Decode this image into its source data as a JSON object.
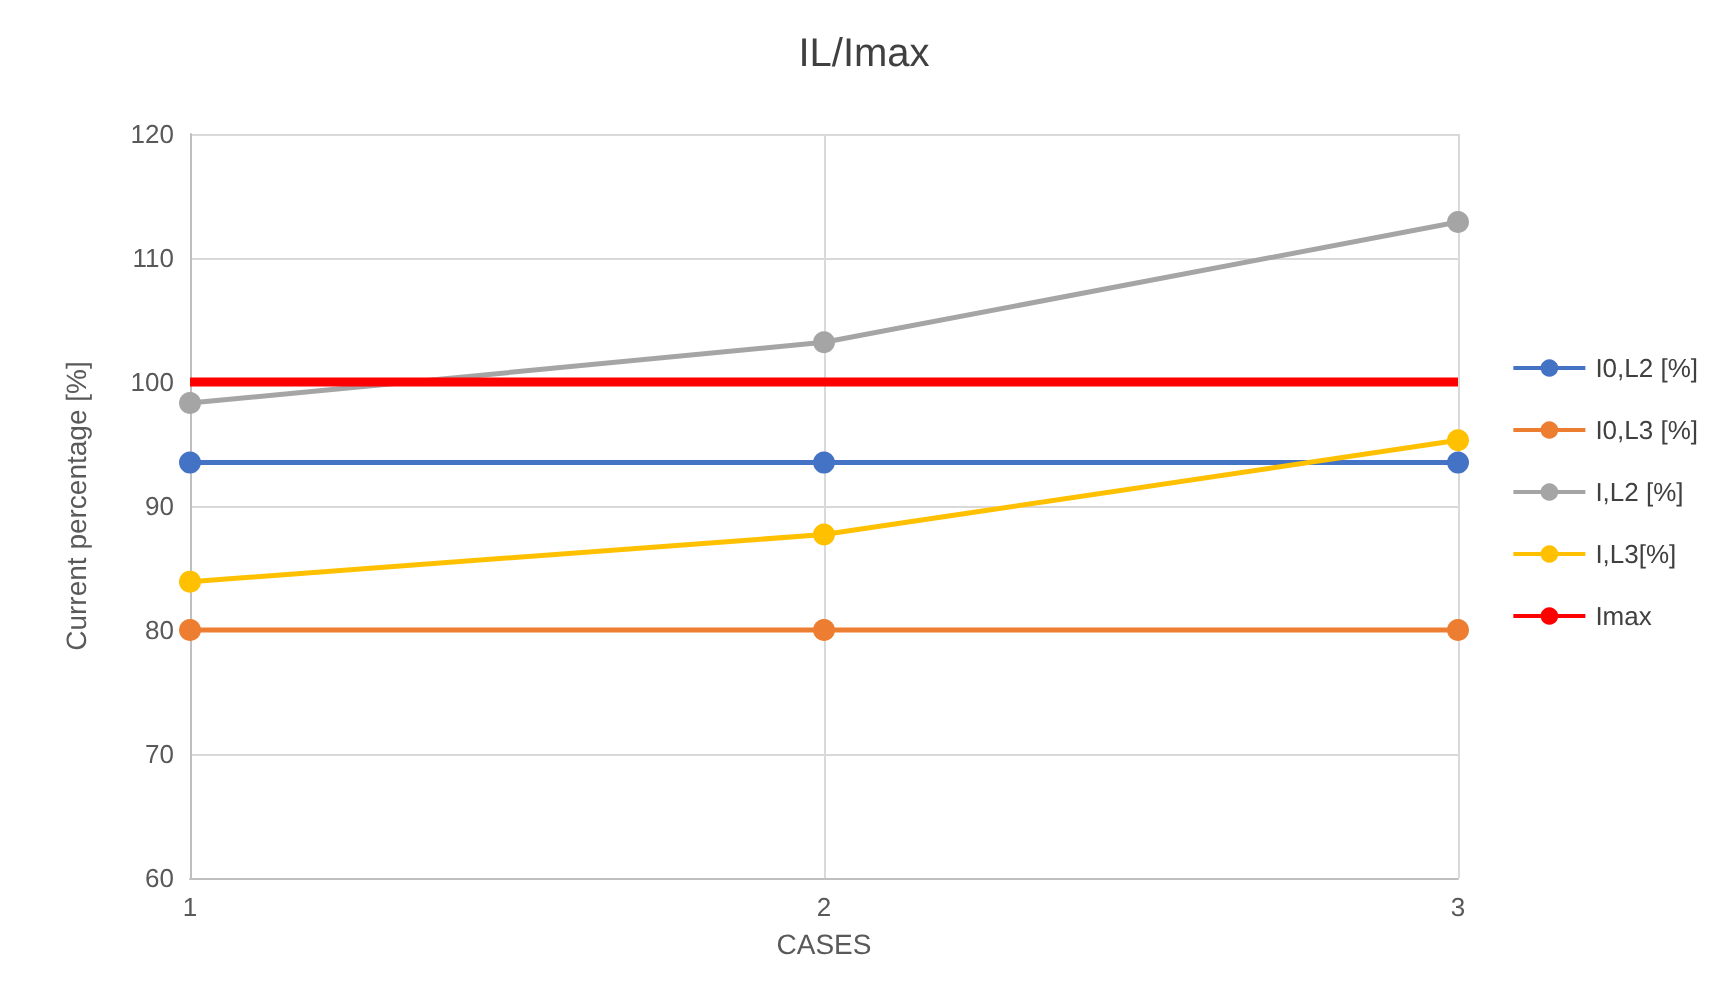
{
  "chart_data": {
    "type": "line",
    "title": "IL/Imax",
    "xlabel": "CASES",
    "ylabel": "Current percentage [%]",
    "x": [
      1,
      2,
      3
    ],
    "xlim": [
      1,
      3
    ],
    "xticks": [
      1,
      2,
      3
    ],
    "ylim": [
      60,
      120
    ],
    "yticks": [
      60,
      70,
      80,
      90,
      100,
      110,
      120
    ],
    "grid": true,
    "legend": "right",
    "marker": "circle",
    "series": [
      {
        "name": "I0,L2 [%]",
        "color": "#4472c4",
        "values": [
          93.5,
          93.5,
          93.5
        ]
      },
      {
        "name": "I0,L3 [%]",
        "color": "#ed7d31",
        "values": [
          80,
          80,
          80
        ]
      },
      {
        "name": "I,L2 [%]",
        "color": "#a5a5a5",
        "values": [
          98.3,
          103.2,
          112.9
        ]
      },
      {
        "name": "I,L3[%]",
        "color": "#ffc000",
        "values": [
          83.9,
          87.7,
          95.3
        ]
      },
      {
        "name": "Imax",
        "color": "#ff0000",
        "values": [
          100,
          100,
          100
        ],
        "marker": "none"
      }
    ]
  }
}
